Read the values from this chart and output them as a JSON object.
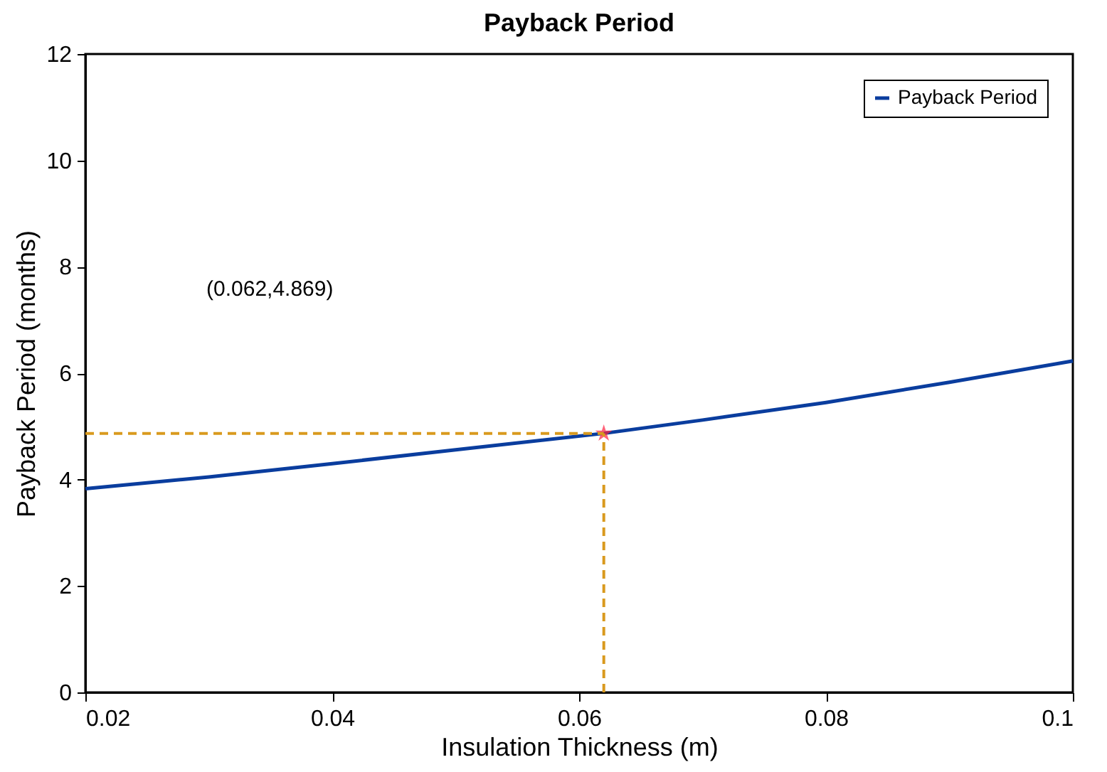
{
  "chart_data": {
    "type": "line",
    "title": "Payback Period",
    "xlabel": "Insulation Thickness (m)",
    "ylabel": "Payback Period (months)",
    "xlim": [
      0.02,
      0.1
    ],
    "xticks": [
      0.02,
      0.04,
      0.06,
      0.08,
      0.1
    ],
    "ylim": [
      0,
      12
    ],
    "yticks": [
      0,
      2,
      4,
      6,
      8,
      10,
      12
    ],
    "grid": false,
    "legend": "top right",
    "line_style": "solid",
    "series": [
      {
        "name": "Payback Period",
        "color": "#0a3d9e",
        "marker": "none",
        "x": [
          0.02,
          0.03,
          0.04,
          0.05,
          0.062,
          0.07,
          0.08,
          0.09,
          0.1
        ],
        "values": [
          3.83,
          4.05,
          4.3,
          4.56,
          4.869,
          5.12,
          5.45,
          5.83,
          6.23
        ]
      },
      {
        "type": "scatter",
        "color": "#ff2040",
        "marker": "star",
        "x": [
          0.062
        ],
        "values": [
          4.869
        ]
      }
    ],
    "ref_lines": [
      {
        "axis": "x",
        "value": 0.062,
        "color": "#d99a1e",
        "line_style": "dashed"
      },
      {
        "axis": "y",
        "value": 4.869,
        "color": "#d99a1e",
        "line_style": "dashed"
      }
    ],
    "annotations": [
      "(0.062,4.869)"
    ]
  }
}
